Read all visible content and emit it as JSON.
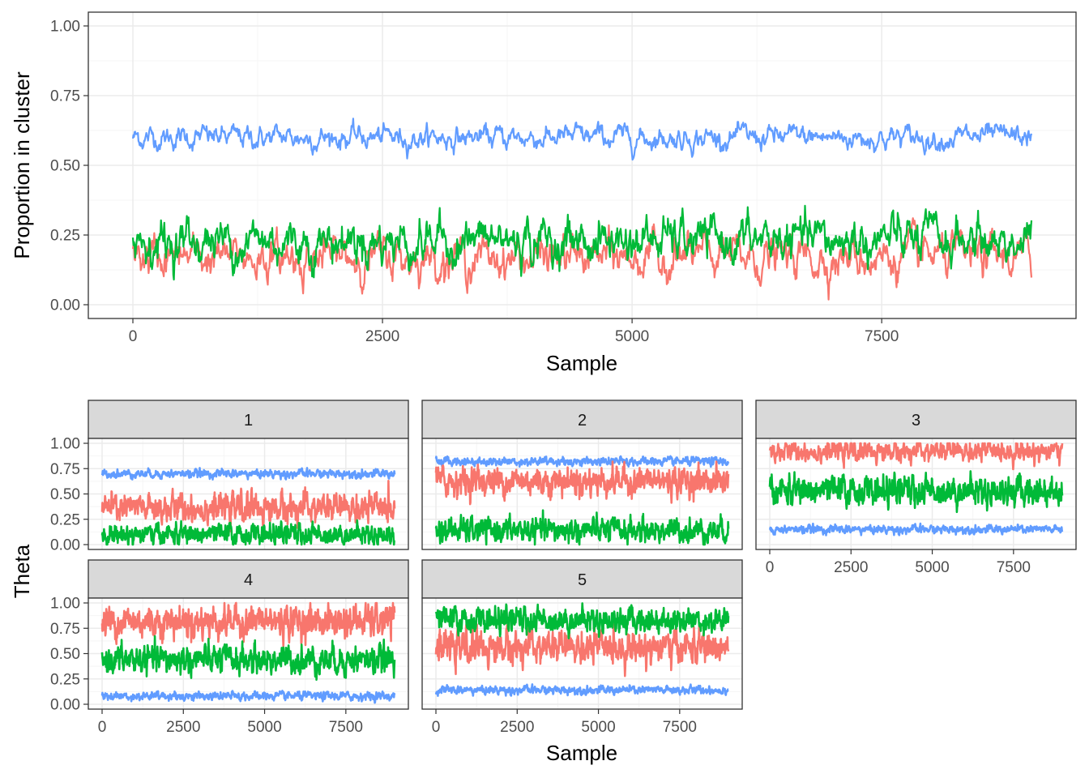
{
  "colors": {
    "series1": "#F8766D",
    "series2": "#00BA38",
    "series3": "#619CFF",
    "panel_border": "#333333",
    "grid_major": "#EBEBEB",
    "strip_fill": "#D9D9D9"
  },
  "chart_data": [
    {
      "type": "line",
      "title": "",
      "xlabel": "Sample",
      "ylabel": "Proportion in cluster",
      "xlim": [
        0,
        9000
      ],
      "ylim": [
        0,
        1
      ],
      "xticks": [
        0,
        2500,
        5000,
        7500
      ],
      "xtick_labels": [
        "0",
        "2500",
        "5000",
        "7500"
      ],
      "yticks": [
        0,
        0.25,
        0.5,
        0.75,
        1
      ],
      "ytick_labels": [
        "0.00",
        "0.25",
        "0.50",
        "0.75",
        "1.00"
      ],
      "grid": true,
      "legend": "none",
      "series": [
        {
          "color": "#619CFF",
          "mean": 0.6,
          "spread": 0.022
        },
        {
          "color": "#F8766D",
          "mean": 0.17,
          "spread": 0.04
        },
        {
          "color": "#00BA38",
          "mean": 0.23,
          "spread": 0.045
        }
      ]
    },
    {
      "type": "line",
      "facets": [
        "1",
        "2",
        "3",
        "4",
        "5"
      ],
      "xlabel": "Sample",
      "ylabel": "Theta",
      "xlim": [
        0,
        9000
      ],
      "ylim": [
        0,
        1
      ],
      "xticks": [
        0,
        2500,
        5000,
        7500
      ],
      "xtick_labels": [
        "0",
        "2500",
        "5000",
        "7500"
      ],
      "yticks": [
        0,
        0.25,
        0.5,
        0.75,
        1
      ],
      "ytick_labels": [
        "0.00",
        "0.25",
        "0.50",
        "0.75",
        "1.00"
      ],
      "grid": true,
      "legend": "none",
      "panels": [
        {
          "facet": "1",
          "series": [
            {
              "color": "#619CFF",
              "mean": 0.7,
              "spread": 0.02
            },
            {
              "color": "#F8766D",
              "mean": 0.36,
              "spread": 0.07
            },
            {
              "color": "#00BA38",
              "mean": 0.1,
              "spread": 0.05
            }
          ]
        },
        {
          "facet": "2",
          "series": [
            {
              "color": "#619CFF",
              "mean": 0.82,
              "spread": 0.02
            },
            {
              "color": "#F8766D",
              "mean": 0.63,
              "spread": 0.07
            },
            {
              "color": "#00BA38",
              "mean": 0.14,
              "spread": 0.06
            }
          ]
        },
        {
          "facet": "3",
          "series": [
            {
              "color": "#619CFF",
              "mean": 0.15,
              "spread": 0.02
            },
            {
              "color": "#F8766D",
              "mean": 0.92,
              "spread": 0.05
            },
            {
              "color": "#00BA38",
              "mean": 0.53,
              "spread": 0.07
            }
          ]
        },
        {
          "facet": "4",
          "series": [
            {
              "color": "#619CFF",
              "mean": 0.08,
              "spread": 0.02
            },
            {
              "color": "#F8766D",
              "mean": 0.82,
              "spread": 0.08
            },
            {
              "color": "#00BA38",
              "mean": 0.44,
              "spread": 0.07
            }
          ]
        },
        {
          "facet": "5",
          "series": [
            {
              "color": "#619CFF",
              "mean": 0.14,
              "spread": 0.02
            },
            {
              "color": "#F8766D",
              "mean": 0.56,
              "spread": 0.08
            },
            {
              "color": "#00BA38",
              "mean": 0.83,
              "spread": 0.06
            }
          ]
        }
      ]
    }
  ]
}
